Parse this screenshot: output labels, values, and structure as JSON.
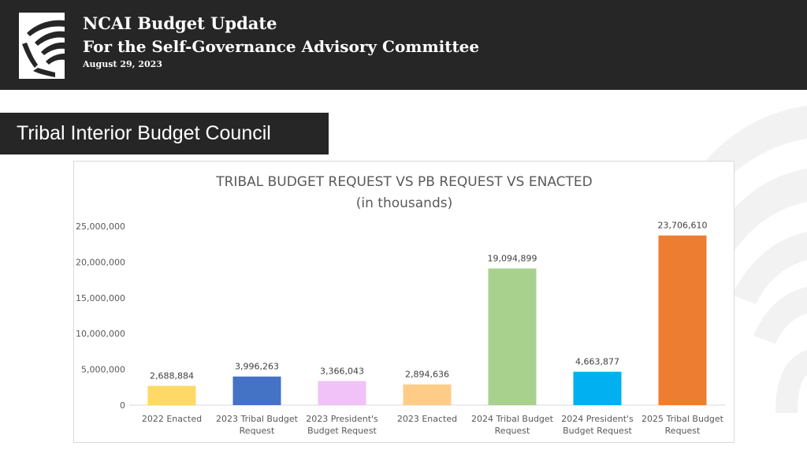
{
  "header": {
    "title": "NCAI Budget Update",
    "subtitle": "For the Self-Governance Advisory Committee",
    "date": "August 29, 2023"
  },
  "section": {
    "title": "Tribal Interior Budget Council"
  },
  "colors": {
    "header_bg": "#262626",
    "text_light": "#ffffff"
  },
  "chart_data": {
    "type": "bar",
    "title": "TRIBAL BUDGET REQUEST VS PB REQUEST VS ENACTED",
    "subtitle": "(in thousands)",
    "xlabel": "",
    "ylabel": "",
    "ylim": [
      0,
      25000000
    ],
    "yticks": [
      0,
      5000000,
      10000000,
      15000000,
      20000000,
      25000000
    ],
    "ytick_labels": [
      "0",
      "5,000,000",
      "10,000,000",
      "15,000,000",
      "20,000,000",
      "25,000,000"
    ],
    "grid": false,
    "legend": "none",
    "categories": [
      [
        "2022 Enacted"
      ],
      [
        "2023 Tribal  Budget",
        "Request"
      ],
      [
        "2023 President's",
        "Budget  Request"
      ],
      [
        "2023 Enacted"
      ],
      [
        "2024 Tribal  Budget",
        "Request"
      ],
      [
        "2024 President's",
        "Budget  Request"
      ],
      [
        "2025 Tribal  Budget",
        "Request"
      ]
    ],
    "values": [
      2688884,
      3996263,
      3366043,
      2894636,
      19094899,
      4663877,
      23706610
    ],
    "value_labels": [
      "2,688,884",
      "3,996,263",
      "3,366,043",
      "2,894,636",
      "19,094,899",
      "4,663,877",
      "23,706,610"
    ],
    "bar_colors": [
      "#ffd966",
      "#4472c4",
      "#f0c2f7",
      "#ffcc88",
      "#a9d18e",
      "#00b0f0",
      "#ed7d31"
    ]
  }
}
